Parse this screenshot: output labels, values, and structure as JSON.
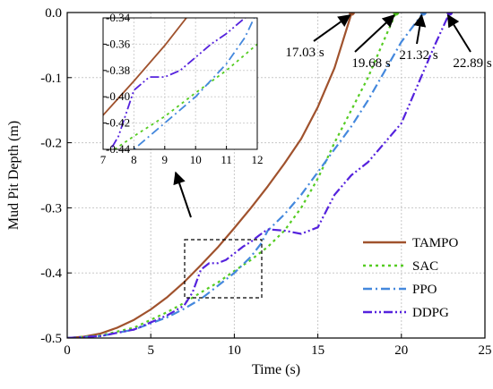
{
  "chart_data": {
    "type": "line",
    "xlabel": "Time (s)",
    "ylabel": "Mud Pit Depth (m)",
    "xlim": [
      0,
      25
    ],
    "ylim": [
      -0.5,
      0.0
    ],
    "xticks": [
      "0",
      "5",
      "10",
      "15",
      "20",
      "25"
    ],
    "yticks": [
      "0.0",
      "-0.1",
      "-0.2",
      "-0.3",
      "-0.4",
      "-0.5"
    ],
    "grid": true,
    "legend_position": "lower-right",
    "series": [
      {
        "name": "TAMPO",
        "color": "#a0522d",
        "style": "solid",
        "x": [
          0,
          1,
          2,
          3,
          4,
          5,
          6,
          7,
          8,
          9,
          10,
          11,
          12,
          13,
          14,
          15,
          16,
          17.03
        ],
        "y": [
          -0.5,
          -0.498,
          -0.493,
          -0.484,
          -0.472,
          -0.456,
          -0.437,
          -0.414,
          -0.388,
          -0.361,
          -0.331,
          -0.3,
          -0.267,
          -0.232,
          -0.194,
          -0.145,
          -0.085,
          0.0
        ]
      },
      {
        "name": "SAC",
        "color": "#55cc22",
        "style": "dotted",
        "x": [
          0,
          2,
          4,
          6,
          7,
          8,
          9,
          10,
          11,
          12,
          13,
          14,
          15,
          16,
          17,
          18,
          19,
          19.68
        ],
        "y": [
          -0.5,
          -0.496,
          -0.484,
          -0.46,
          -0.446,
          -0.43,
          -0.415,
          -0.397,
          -0.38,
          -0.36,
          -0.335,
          -0.3,
          -0.255,
          -0.2,
          -0.15,
          -0.1,
          -0.04,
          0.0
        ]
      },
      {
        "name": "PPO",
        "color": "#4488dd",
        "style": "dashdot",
        "x": [
          0,
          2,
          4,
          6,
          7,
          8,
          9,
          10,
          11,
          11.6,
          12,
          13,
          14,
          15,
          16,
          17,
          18,
          19,
          20,
          21.32
        ],
        "y": [
          -0.5,
          -0.497,
          -0.487,
          -0.468,
          -0.455,
          -0.44,
          -0.42,
          -0.4,
          -0.375,
          -0.355,
          -0.335,
          -0.31,
          -0.28,
          -0.245,
          -0.21,
          -0.175,
          -0.135,
          -0.09,
          -0.045,
          0.0
        ]
      },
      {
        "name": "DDPG",
        "color": "#5522dd",
        "style": "dashdotdot",
        "x": [
          0,
          2,
          4,
          6,
          7,
          7.5,
          8,
          8.5,
          9,
          9.5,
          10,
          10.5,
          11,
          11.5,
          12,
          13,
          14,
          15,
          16,
          17,
          18,
          19,
          20,
          21,
          22,
          22.89
        ],
        "y": [
          -0.5,
          -0.497,
          -0.487,
          -0.465,
          -0.45,
          -0.43,
          -0.395,
          -0.385,
          -0.385,
          -0.38,
          -0.37,
          -0.36,
          -0.352,
          -0.342,
          -0.333,
          -0.335,
          -0.34,
          -0.33,
          -0.28,
          -0.25,
          -0.23,
          -0.2,
          -0.17,
          -0.11,
          -0.05,
          0.0
        ]
      }
    ],
    "annotations": [
      {
        "text": "17.03 s",
        "x": 17.03
      },
      {
        "text": "19.68 s",
        "x": 19.68
      },
      {
        "text": "21.32 s",
        "x": 21.32
      },
      {
        "text": "22.89 s",
        "x": 22.89
      }
    ],
    "inset": {
      "xlim": [
        7,
        12
      ],
      "ylim": [
        -0.44,
        -0.34
      ],
      "xticks": [
        "7",
        "8",
        "9",
        "10",
        "11",
        "12"
      ],
      "yticks": [
        "-0.34",
        "-0.36",
        "-0.38",
        "-0.40",
        "-0.42",
        "-0.44"
      ]
    }
  }
}
